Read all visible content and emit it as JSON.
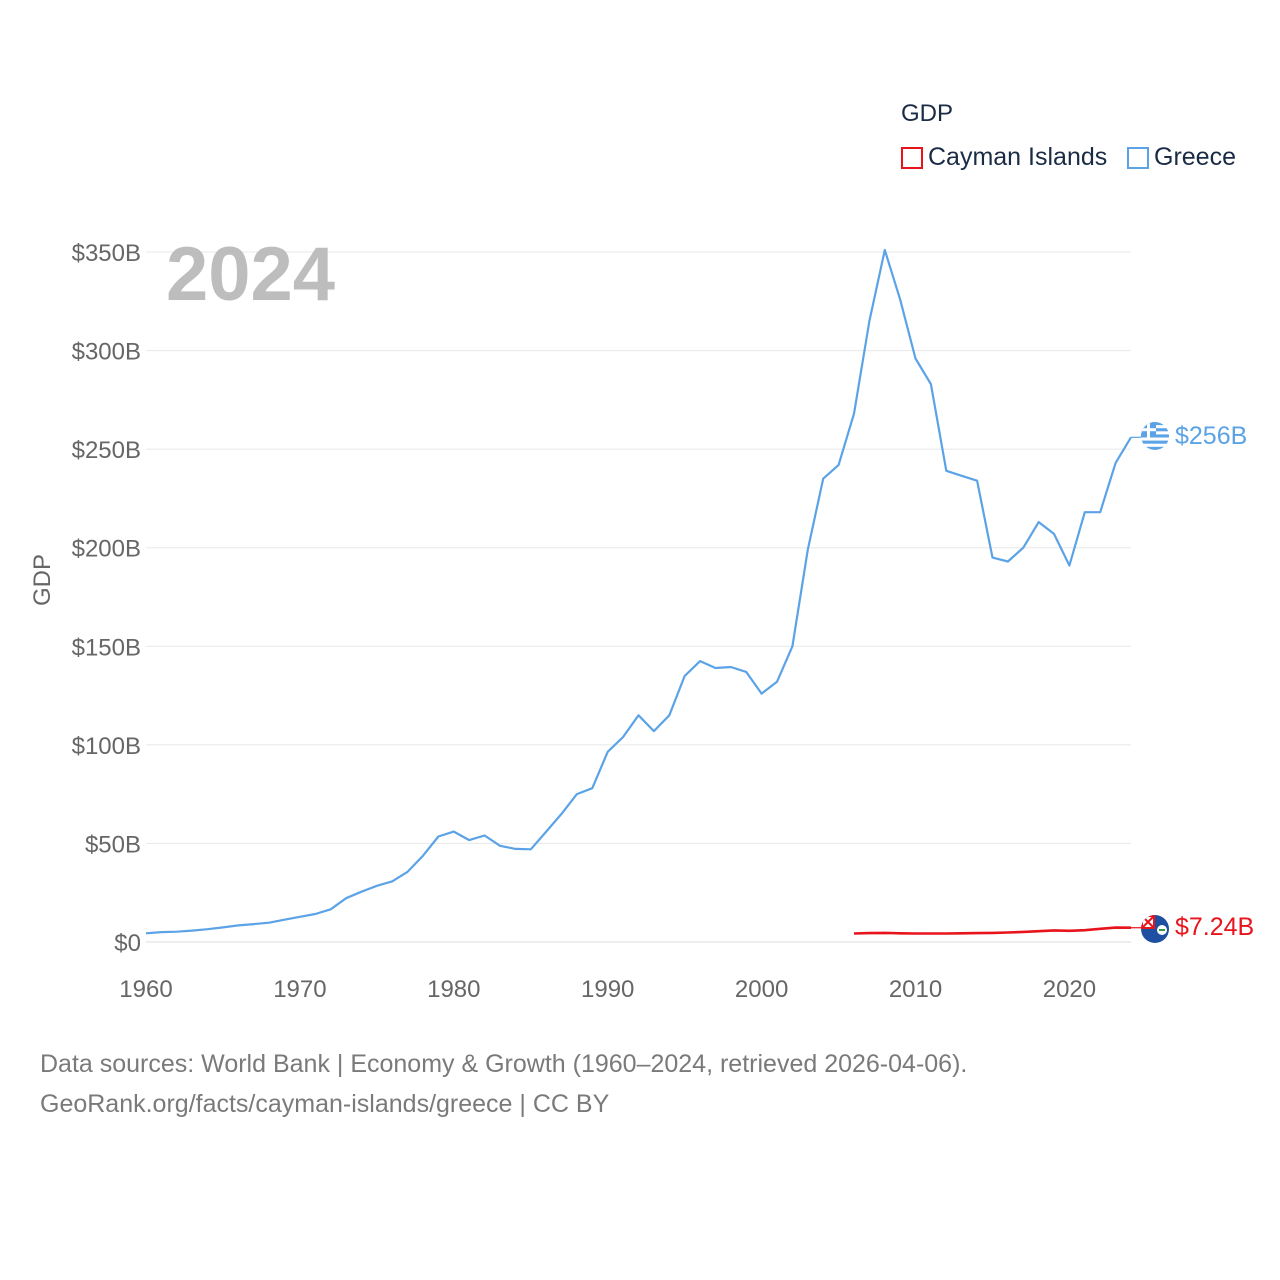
{
  "legend": {
    "title": "GDP",
    "items": [
      {
        "label": "Cayman Islands",
        "color": "#e8141c"
      },
      {
        "label": "Greece",
        "color": "#5ba3e6"
      }
    ]
  },
  "footer": {
    "line1": "Data sources: World Bank | Economy & Growth (1960–2024, retrieved 2026-04-06).",
    "line2": "GeoRank.org/facts/cayman-islands/greece | CC BY"
  },
  "chart_data": {
    "type": "line",
    "title": "GDP",
    "year_label": "2024",
    "xlabel": "",
    "ylabel": "GDP",
    "xlim": [
      1960,
      2024
    ],
    "ylim": [
      0,
      350
    ],
    "unit": "billion USD",
    "grid": true,
    "legend_position": "top-right",
    "x_ticks": [
      1960,
      1970,
      1980,
      1990,
      2000,
      2010,
      2020
    ],
    "y_ticks": [
      {
        "value": 0,
        "label": "$0"
      },
      {
        "value": 50,
        "label": "$50B"
      },
      {
        "value": 100,
        "label": "$100B"
      },
      {
        "value": 150,
        "label": "$150B"
      },
      {
        "value": 200,
        "label": "$200B"
      },
      {
        "value": 250,
        "label": "$250B"
      },
      {
        "value": 300,
        "label": "$300B"
      },
      {
        "value": 350,
        "label": "$350B"
      }
    ],
    "series": [
      {
        "name": "Greece",
        "color": "#5ba3e6",
        "end_label": "$256B",
        "x": [
          1960,
          1961,
          1962,
          1963,
          1964,
          1965,
          1966,
          1967,
          1968,
          1969,
          1970,
          1971,
          1972,
          1973,
          1974,
          1975,
          1976,
          1977,
          1978,
          1979,
          1980,
          1981,
          1982,
          1983,
          1984,
          1985,
          1986,
          1987,
          1988,
          1989,
          1990,
          1991,
          1992,
          1993,
          1994,
          1995,
          1996,
          1997,
          1998,
          1999,
          2000,
          2001,
          2002,
          2003,
          2004,
          2005,
          2006,
          2007,
          2008,
          2009,
          2010,
          2011,
          2012,
          2013,
          2014,
          2015,
          2016,
          2017,
          2018,
          2019,
          2020,
          2021,
          2022,
          2023,
          2024
        ],
        "values": [
          4.4,
          5.0,
          5.2,
          5.8,
          6.5,
          7.4,
          8.4,
          9.1,
          9.8,
          11.3,
          12.8,
          14.2,
          16.6,
          22.2,
          25.5,
          28.5,
          30.8,
          35.6,
          43.8,
          53.5,
          56.0,
          51.7,
          54.0,
          48.8,
          47.2,
          47.0,
          56.0,
          65.0,
          75.0,
          78.0,
          96.5,
          104.0,
          115.0,
          107.0,
          115.0,
          135.0,
          142.5,
          139.0,
          139.5,
          137.0,
          126.0,
          132.0,
          150.0,
          199.0,
          235.0,
          242.0,
          268.0,
          315.0,
          351.0,
          326.0,
          296.0,
          283.0,
          239.0,
          236.5,
          234.0,
          195.0,
          193.0,
          200.0,
          213.0,
          207.0,
          191.0,
          218.0,
          218.0,
          243.0,
          256.0
        ]
      },
      {
        "name": "Cayman Islands",
        "color": "#e8141c",
        "end_label": "$7.24B",
        "x": [
          2006,
          2007,
          2008,
          2009,
          2010,
          2011,
          2012,
          2013,
          2014,
          2015,
          2016,
          2017,
          2018,
          2019,
          2020,
          2021,
          2022,
          2023,
          2024
        ],
        "values": [
          4.3,
          4.5,
          4.6,
          4.4,
          4.3,
          4.3,
          4.3,
          4.4,
          4.5,
          4.6,
          4.8,
          5.1,
          5.5,
          5.9,
          5.7,
          6.0,
          6.7,
          7.3,
          7.24
        ]
      }
    ]
  }
}
